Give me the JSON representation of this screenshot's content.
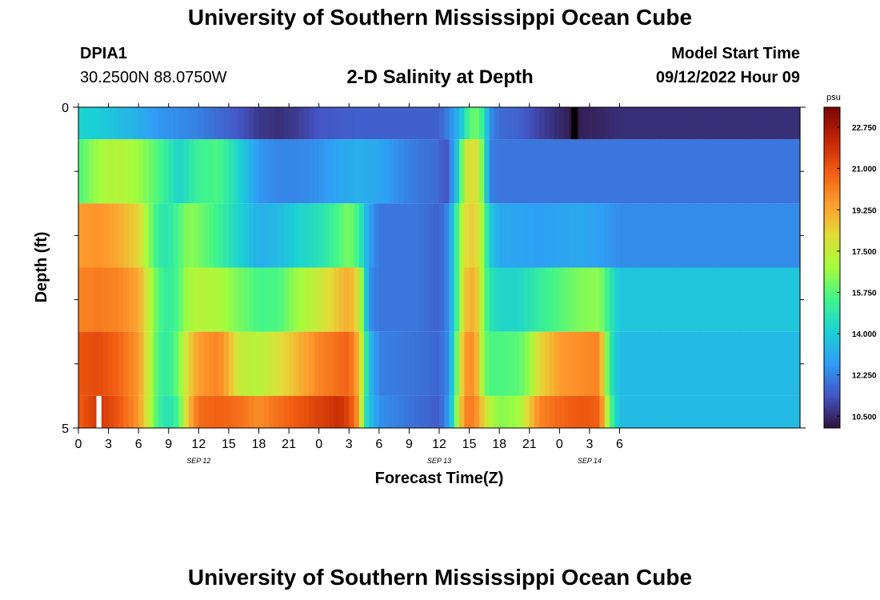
{
  "header": {
    "title": "University of Southern Mississippi Ocean Cube",
    "station_id": "DPIA1",
    "coords": "30.2500N  88.0750W",
    "chart_title": "2-D Salinity at Depth",
    "model_start_label": "Model Start Time",
    "model_start_value": "09/12/2022 Hour 09"
  },
  "footer": {
    "title": "University of Southern Mississippi Ocean Cube"
  },
  "colors": {
    "colormap": [
      "#30123b",
      "#4454c4",
      "#2f9df5",
      "#1bd0d5",
      "#3ff58c",
      "#a4fc3c",
      "#e2dc38",
      "#fe9b2d",
      "#f05b12",
      "#c22402",
      "#7a0403"
    ]
  },
  "chart_data": {
    "type": "heatmap",
    "xlabel": "Forecast Time(Z)",
    "ylabel": "Depth (ft)",
    "xlim": [
      0,
      72
    ],
    "ylim": [
      0,
      5
    ],
    "x_ticks": [
      {
        "x": 0,
        "label": "0"
      },
      {
        "x": 3,
        "label": "3"
      },
      {
        "x": 6,
        "label": "6"
      },
      {
        "x": 9,
        "label": "9"
      },
      {
        "x": 12,
        "label": "12"
      },
      {
        "x": 15,
        "label": "15"
      },
      {
        "x": 18,
        "label": "18"
      },
      {
        "x": 21,
        "label": "21"
      },
      {
        "x": 24,
        "label": "0"
      },
      {
        "x": 27,
        "label": "3"
      },
      {
        "x": 30,
        "label": "6"
      },
      {
        "x": 33,
        "label": "9"
      },
      {
        "x": 36,
        "label": "12"
      },
      {
        "x": 39,
        "label": "15"
      },
      {
        "x": 42,
        "label": "18"
      },
      {
        "x": 45,
        "label": "21"
      },
      {
        "x": 48,
        "label": "0"
      },
      {
        "x": 51,
        "label": "3"
      },
      {
        "x": 54,
        "label": "6"
      }
    ],
    "date_labels": [
      {
        "x": 12,
        "label": "SEP 12"
      },
      {
        "x": 36,
        "label": "SEP 13"
      },
      {
        "x": 51,
        "label": "SEP 14"
      }
    ],
    "y_ticks": [
      {
        "y": 0,
        "label": "0"
      },
      {
        "y": 5,
        "label": "5"
      }
    ],
    "y_minor_ticks": [
      1,
      2,
      3,
      4
    ],
    "depth_layers": [
      {
        "y_top": 0.0,
        "y_bottom": 0.5,
        "knots": [
          [
            0,
            14.2
          ],
          [
            2,
            14.0
          ],
          [
            4,
            13.6
          ],
          [
            6,
            13.2
          ],
          [
            8,
            12.6
          ],
          [
            10,
            12.4
          ],
          [
            12,
            12.2
          ],
          [
            14,
            11.8
          ],
          [
            16,
            11.4
          ],
          [
            18,
            10.8
          ],
          [
            20,
            10.6
          ],
          [
            22,
            10.9
          ],
          [
            24,
            11.4
          ],
          [
            28,
            11.6
          ],
          [
            32,
            11.6
          ],
          [
            36,
            11.6
          ],
          [
            37,
            12.3
          ],
          [
            38,
            13.4
          ],
          [
            38.5,
            14.5
          ],
          [
            39,
            15.6
          ],
          [
            39.5,
            16.2
          ],
          [
            40,
            15.8
          ],
          [
            40.5,
            14.8
          ],
          [
            41,
            12.5
          ],
          [
            42,
            11.8
          ],
          [
            44,
            11.6
          ],
          [
            46,
            11.0
          ],
          [
            48,
            10.5
          ],
          [
            49,
            10.3
          ],
          [
            49.5,
            9.8
          ],
          [
            50,
            10.3
          ],
          [
            52,
            10.4
          ],
          [
            54,
            10.6
          ]
        ]
      },
      {
        "y_top": 0.5,
        "y_bottom": 1.5,
        "knots": [
          [
            0,
            15.6
          ],
          [
            2,
            16.8
          ],
          [
            4,
            17.2
          ],
          [
            6,
            16.7
          ],
          [
            8,
            15.6
          ],
          [
            10,
            14.2
          ],
          [
            12,
            15.3
          ],
          [
            14,
            15.6
          ],
          [
            16,
            14.2
          ],
          [
            18,
            12.6
          ],
          [
            20,
            12.3
          ],
          [
            22,
            12.3
          ],
          [
            24,
            12.5
          ],
          [
            26,
            13.0
          ],
          [
            28,
            13.2
          ],
          [
            30,
            13.0
          ],
          [
            32,
            12.4
          ],
          [
            34,
            12.0
          ],
          [
            36,
            11.8
          ],
          [
            36.6,
            11.2
          ],
          [
            37,
            11.8
          ],
          [
            38,
            14.5
          ],
          [
            38.5,
            17.5
          ],
          [
            39.5,
            18.2
          ],
          [
            40,
            17.5
          ],
          [
            40.5,
            15.2
          ],
          [
            41,
            12.2
          ],
          [
            42,
            12.0
          ],
          [
            46,
            12.0
          ],
          [
            50,
            12.0
          ],
          [
            54,
            12.0
          ]
        ]
      },
      {
        "y_top": 1.5,
        "y_bottom": 2.5,
        "knots": [
          [
            0,
            19.5
          ],
          [
            2,
            19.7
          ],
          [
            4,
            19.2
          ],
          [
            6,
            18.3
          ],
          [
            7,
            16.5
          ],
          [
            8,
            15.0
          ],
          [
            9,
            14.8
          ],
          [
            10,
            15.6
          ],
          [
            11,
            16.5
          ],
          [
            12,
            16.2
          ],
          [
            14,
            15.3
          ],
          [
            16,
            14.2
          ],
          [
            18,
            13.2
          ],
          [
            20,
            13.5
          ],
          [
            22,
            14.2
          ],
          [
            24,
            14.6
          ],
          [
            26,
            15.6
          ],
          [
            27,
            16.3
          ],
          [
            28,
            15.2
          ],
          [
            29,
            12.8
          ],
          [
            30,
            12.0
          ],
          [
            34,
            12.0
          ],
          [
            36,
            11.6
          ],
          [
            37,
            12.5
          ],
          [
            38,
            16.2
          ],
          [
            38.5,
            18.0
          ],
          [
            39.5,
            18.6
          ],
          [
            40,
            17.8
          ],
          [
            40.5,
            16.0
          ],
          [
            41,
            14.0
          ],
          [
            42,
            13.0
          ],
          [
            46,
            12.8
          ],
          [
            50,
            13.0
          ],
          [
            52,
            12.8
          ],
          [
            54,
            12.4
          ]
        ]
      },
      {
        "y_top": 2.5,
        "y_bottom": 3.5,
        "knots": [
          [
            0,
            20.0
          ],
          [
            2,
            20.2
          ],
          [
            4,
            20.0
          ],
          [
            6,
            19.3
          ],
          [
            7,
            17.5
          ],
          [
            8,
            15.6
          ],
          [
            9,
            15.0
          ],
          [
            10,
            15.7
          ],
          [
            11,
            17.0
          ],
          [
            12,
            17.2
          ],
          [
            14,
            17.0
          ],
          [
            16,
            16.2
          ],
          [
            18,
            15.5
          ],
          [
            20,
            15.6
          ],
          [
            22,
            16.8
          ],
          [
            24,
            17.6
          ],
          [
            26,
            18.7
          ],
          [
            27,
            19.2
          ],
          [
            28,
            18.0
          ],
          [
            28.5,
            15.0
          ],
          [
            29,
            12.5
          ],
          [
            30,
            12.0
          ],
          [
            34,
            12.0
          ],
          [
            36,
            11.6
          ],
          [
            37,
            12.5
          ],
          [
            38,
            16.2
          ],
          [
            38.5,
            18.6
          ],
          [
            39.5,
            19.2
          ],
          [
            40,
            18.0
          ],
          [
            40.5,
            16.2
          ],
          [
            41,
            14.8
          ],
          [
            42,
            14.3
          ],
          [
            44,
            14.3
          ],
          [
            46,
            15.1
          ],
          [
            48,
            15.7
          ],
          [
            50,
            16.3
          ],
          [
            52,
            16.5
          ],
          [
            53,
            15.0
          ],
          [
            54,
            13.8
          ]
        ]
      },
      {
        "y_top": 3.5,
        "y_bottom": 4.5,
        "knots": [
          [
            0,
            21.0
          ],
          [
            2,
            21.3
          ],
          [
            4,
            20.7
          ],
          [
            6,
            19.6
          ],
          [
            7,
            17.6
          ],
          [
            8,
            15.3
          ],
          [
            9,
            15.0
          ],
          [
            10,
            16.2
          ],
          [
            11,
            18.3
          ],
          [
            12,
            19.5
          ],
          [
            14,
            20.0
          ],
          [
            15,
            19.0
          ],
          [
            16,
            17.5
          ],
          [
            18,
            17.2
          ],
          [
            20,
            18.0
          ],
          [
            22,
            19.0
          ],
          [
            24,
            20.0
          ],
          [
            26,
            20.5
          ],
          [
            27,
            20.7
          ],
          [
            28,
            19.0
          ],
          [
            28.5,
            16.0
          ],
          [
            29,
            13.6
          ],
          [
            30,
            12.2
          ],
          [
            34,
            11.9
          ],
          [
            36,
            11.7
          ],
          [
            37,
            12.5
          ],
          [
            38,
            17.2
          ],
          [
            38.5,
            19.5
          ],
          [
            39.5,
            19.8
          ],
          [
            40,
            18.2
          ],
          [
            40.5,
            16.2
          ],
          [
            41,
            15.6
          ],
          [
            42,
            15.6
          ],
          [
            44,
            15.8
          ],
          [
            45,
            16.6
          ],
          [
            46,
            18.2
          ],
          [
            48,
            19.5
          ],
          [
            50,
            19.8
          ],
          [
            52,
            20.0
          ],
          [
            52.5,
            17.5
          ],
          [
            53,
            15.0
          ],
          [
            54,
            13.5
          ]
        ]
      },
      {
        "y_top": 4.5,
        "y_bottom": 5.0,
        "knots": [
          [
            0,
            20.8
          ],
          [
            2,
            21.8
          ],
          [
            4,
            21.0
          ],
          [
            6,
            19.6
          ],
          [
            7,
            17.5
          ],
          [
            8,
            15.2
          ],
          [
            9,
            14.6
          ],
          [
            10,
            15.5
          ],
          [
            11,
            18.8
          ],
          [
            12,
            20.5
          ],
          [
            14,
            20.8
          ],
          [
            16,
            20.5
          ],
          [
            18,
            19.8
          ],
          [
            20,
            20.5
          ],
          [
            22,
            21.0
          ],
          [
            24,
            21.5
          ],
          [
            26,
            22.0
          ],
          [
            27,
            21.4
          ],
          [
            28,
            19.5
          ],
          [
            28.5,
            15.2
          ],
          [
            29,
            13.8
          ],
          [
            30,
            12.5
          ],
          [
            34,
            11.8
          ],
          [
            36,
            11.5
          ],
          [
            37,
            12.8
          ],
          [
            38,
            17.8
          ],
          [
            38.5,
            20.0
          ],
          [
            39.5,
            20.2
          ],
          [
            40,
            19.2
          ],
          [
            41,
            17.2
          ],
          [
            42,
            16.4
          ],
          [
            44,
            16.8
          ],
          [
            45,
            18.5
          ],
          [
            46,
            20.0
          ],
          [
            48,
            20.6
          ],
          [
            50,
            21.0
          ],
          [
            52,
            20.8
          ],
          [
            52.5,
            18.5
          ],
          [
            53,
            16.0
          ],
          [
            54,
            13.5
          ]
        ]
      }
    ],
    "data_gaps": [
      {
        "x_start": 1.8,
        "x_end": 2.3,
        "y_top": 4.5,
        "y_bottom": 5.0
      }
    ],
    "dark_marks": [
      {
        "x_start": 49.2,
        "x_end": 49.8,
        "y_top": 0.0,
        "y_bottom": 0.5
      }
    ],
    "colorbar": {
      "unit": "psu",
      "range": [
        10.0,
        23.6
      ],
      "ticks": [
        "22.750",
        "21.000",
        "19.250",
        "17.500",
        "15.750",
        "14.000",
        "12.250",
        "10.500"
      ],
      "tick_values": [
        22.75,
        21.0,
        19.25,
        17.5,
        15.75,
        14.0,
        12.25,
        10.5
      ]
    }
  }
}
